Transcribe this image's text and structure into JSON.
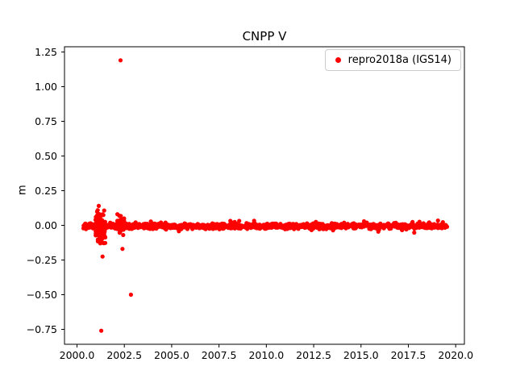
{
  "chart_data": {
    "type": "scatter",
    "title": "CNPP V",
    "xlabel": "",
    "ylabel": "m",
    "grid": false,
    "legend_position": "upper right",
    "legend": [
      {
        "label": "repro2018a (IGS14)",
        "color": "#ff0000",
        "marker": "dot"
      }
    ],
    "xlim": [
      1999.34,
      2020.46
    ],
    "ylim": [
      -0.8575,
      1.2875
    ],
    "xticks": {
      "values": [
        2000.0,
        2002.5,
        2005.0,
        2007.5,
        2010.0,
        2012.5,
        2015.0,
        2017.5,
        2020.0
      ],
      "labels": [
        "2000.0",
        "2002.5",
        "2005.0",
        "2007.5",
        "2010.0",
        "2012.5",
        "2015.0",
        "2017.5",
        "2020.0"
      ]
    },
    "yticks": {
      "values": [
        -0.75,
        -0.5,
        -0.25,
        0.0,
        0.25,
        0.5,
        0.75,
        1.0,
        1.25
      ],
      "labels": [
        "−0.75",
        "−0.50",
        "−0.25",
        "0.00",
        "0.25",
        "0.50",
        "0.75",
        "1.00",
        "1.25"
      ]
    },
    "series": [
      {
        "name": "repro2018a (IGS14)",
        "color": "#ff0000",
        "marker": "circle",
        "marker_radius_px": 2.6,
        "band": {
          "x_start": 2000.32,
          "x_end": 2019.55,
          "n_points": 1400,
          "y_mean": -0.006,
          "y_sigma": 0.009,
          "wide_fraction": 0.08,
          "wide_sigma": 0.018
        },
        "clusters": [
          {
            "x_start": 2000.98,
            "x_end": 2001.5,
            "n_points": 130,
            "y_mean": -0.02,
            "y_sigma": 0.05,
            "y_clip": [
              -0.22,
              0.13
            ]
          },
          {
            "x_start": 2002.1,
            "x_end": 2002.5,
            "n_points": 60,
            "y_mean": 0.005,
            "y_sigma": 0.03,
            "y_clip": [
              -0.1,
              0.08
            ]
          }
        ],
        "outliers": [
          [
            2002.3,
            1.19
          ],
          [
            2001.15,
            0.14
          ],
          [
            2001.28,
            -0.76
          ],
          [
            2001.35,
            -0.225
          ],
          [
            2002.4,
            -0.17
          ],
          [
            2002.85,
            -0.5
          ]
        ]
      }
    ]
  }
}
